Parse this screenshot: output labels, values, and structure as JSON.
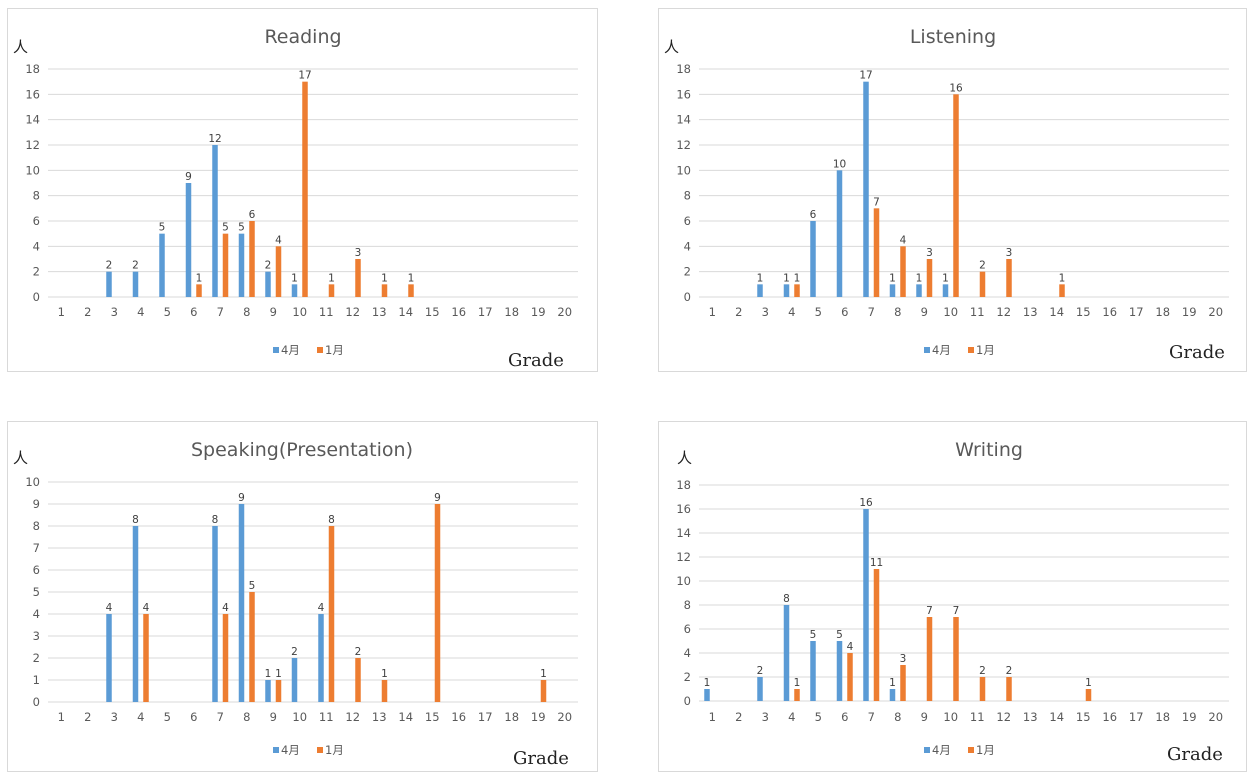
{
  "chart_data": [
    {
      "type": "bar",
      "title": "Reading",
      "ylabel": "人",
      "xlabel": "Grade",
      "categories": [
        "1",
        "2",
        "3",
        "4",
        "5",
        "6",
        "7",
        "8",
        "9",
        "10",
        "11",
        "12",
        "13",
        "14",
        "15",
        "16",
        "17",
        "18",
        "19",
        "20"
      ],
      "ylim": [
        0,
        18
      ],
      "yticks": [
        0,
        2,
        4,
        6,
        8,
        10,
        12,
        14,
        16,
        18
      ],
      "grid": true,
      "legend": "bottom",
      "series": [
        {
          "name": "4月",
          "color": "#5b9bd5",
          "values": [
            0,
            0,
            2,
            2,
            5,
            9,
            12,
            5,
            2,
            1,
            0,
            0,
            0,
            0,
            0,
            0,
            0,
            0,
            0,
            0
          ]
        },
        {
          "name": "1月",
          "color": "#ed7d31",
          "values": [
            0,
            0,
            0,
            0,
            0,
            1,
            5,
            6,
            4,
            17,
            1,
            3,
            1,
            1,
            0,
            0,
            0,
            0,
            0,
            0
          ]
        }
      ]
    },
    {
      "type": "bar",
      "title": "Listening",
      "ylabel": "人",
      "xlabel": "Grade",
      "categories": [
        "1",
        "2",
        "3",
        "4",
        "5",
        "6",
        "7",
        "8",
        "9",
        "10",
        "11",
        "12",
        "13",
        "14",
        "15",
        "16",
        "17",
        "18",
        "19",
        "20"
      ],
      "ylim": [
        0,
        18
      ],
      "yticks": [
        0,
        2,
        4,
        6,
        8,
        10,
        12,
        14,
        16,
        18
      ],
      "grid": true,
      "legend": "bottom",
      "series": [
        {
          "name": "4月",
          "color": "#5b9bd5",
          "values": [
            0,
            0,
            1,
            1,
            6,
            10,
            17,
            1,
            1,
            1,
            0,
            0,
            0,
            0,
            0,
            0,
            0,
            0,
            0,
            0
          ]
        },
        {
          "name": "1月",
          "color": "#ed7d31",
          "values": [
            0,
            0,
            0,
            1,
            0,
            0,
            7,
            4,
            3,
            16,
            2,
            3,
            0,
            1,
            0,
            0,
            0,
            0,
            0,
            0
          ]
        }
      ]
    },
    {
      "type": "bar",
      "title": "Speaking(Presentation)",
      "ylabel": "人",
      "xlabel": "Grade",
      "categories": [
        "1",
        "2",
        "3",
        "4",
        "5",
        "6",
        "7",
        "8",
        "9",
        "10",
        "11",
        "12",
        "13",
        "14",
        "15",
        "16",
        "17",
        "18",
        "19",
        "20"
      ],
      "ylim": [
        0,
        10
      ],
      "yticks": [
        0,
        1,
        2,
        3,
        4,
        5,
        6,
        7,
        8,
        9,
        10
      ],
      "grid": true,
      "legend": "bottom",
      "series": [
        {
          "name": "4月",
          "color": "#5b9bd5",
          "values": [
            0,
            0,
            4,
            8,
            0,
            0,
            8,
            9,
            1,
            2,
            4,
            0,
            0,
            0,
            0,
            0,
            0,
            0,
            0,
            0
          ]
        },
        {
          "name": "1月",
          "color": "#ed7d31",
          "values": [
            0,
            0,
            0,
            4,
            0,
            0,
            4,
            5,
            1,
            0,
            8,
            2,
            1,
            0,
            9,
            0,
            0,
            0,
            1,
            0
          ]
        }
      ]
    },
    {
      "type": "bar",
      "title": "Writing",
      "ylabel": "人",
      "xlabel": "Grade",
      "categories": [
        "1",
        "2",
        "3",
        "4",
        "5",
        "6",
        "7",
        "8",
        "9",
        "10",
        "11",
        "12",
        "13",
        "14",
        "15",
        "16",
        "17",
        "18",
        "19",
        "20"
      ],
      "ylim": [
        0,
        18
      ],
      "yticks": [
        0,
        2,
        4,
        6,
        8,
        10,
        12,
        14,
        16,
        18
      ],
      "grid": true,
      "legend": "bottom",
      "series": [
        {
          "name": "4月",
          "color": "#5b9bd5",
          "values": [
            1,
            0,
            2,
            8,
            5,
            5,
            16,
            1,
            0,
            0,
            0,
            0,
            0,
            0,
            0,
            0,
            0,
            0,
            0,
            0
          ]
        },
        {
          "name": "1月",
          "color": "#ed7d31",
          "values": [
            0,
            0,
            0,
            1,
            0,
            4,
            11,
            3,
            7,
            7,
            2,
            2,
            0,
            0,
            1,
            0,
            0,
            0,
            0,
            0
          ]
        }
      ]
    }
  ]
}
